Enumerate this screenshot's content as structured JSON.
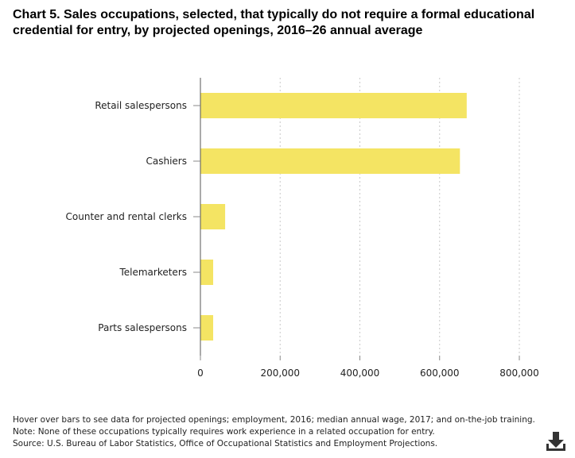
{
  "chart_data": {
    "type": "bar",
    "orientation": "horizontal",
    "title": "Chart 5. Sales occupations, selected, that typically do not require a formal educational credential for entry, by projected openings, 2016–26 annual average",
    "categories": [
      "Retail salespersons",
      "Cashiers",
      "Counter and rental clerks",
      "Telemarketers",
      "Parts salespersons"
    ],
    "values": [
      668000,
      651000,
      62000,
      32000,
      32000
    ],
    "xlim": [
      0,
      800000
    ],
    "ticks": [
      0,
      200000,
      400000,
      600000,
      800000
    ],
    "tick_labels": [
      "0",
      "200,000",
      "400,000",
      "600,000",
      "800,000"
    ],
    "grid": true,
    "bar_color": "#f4e463"
  },
  "notes": {
    "hover": "Hover over bars to see data for projected openings; employment, 2016; median annual wage, 2017; and on-the-job training.",
    "note": "Note: None of these occupations typically requires work experience in a related occupation for entry.",
    "source": "Source: U.S. Bureau of Labor Statistics, Office of Occupational Statistics and Employment Projections."
  },
  "download_icon": "download-icon"
}
